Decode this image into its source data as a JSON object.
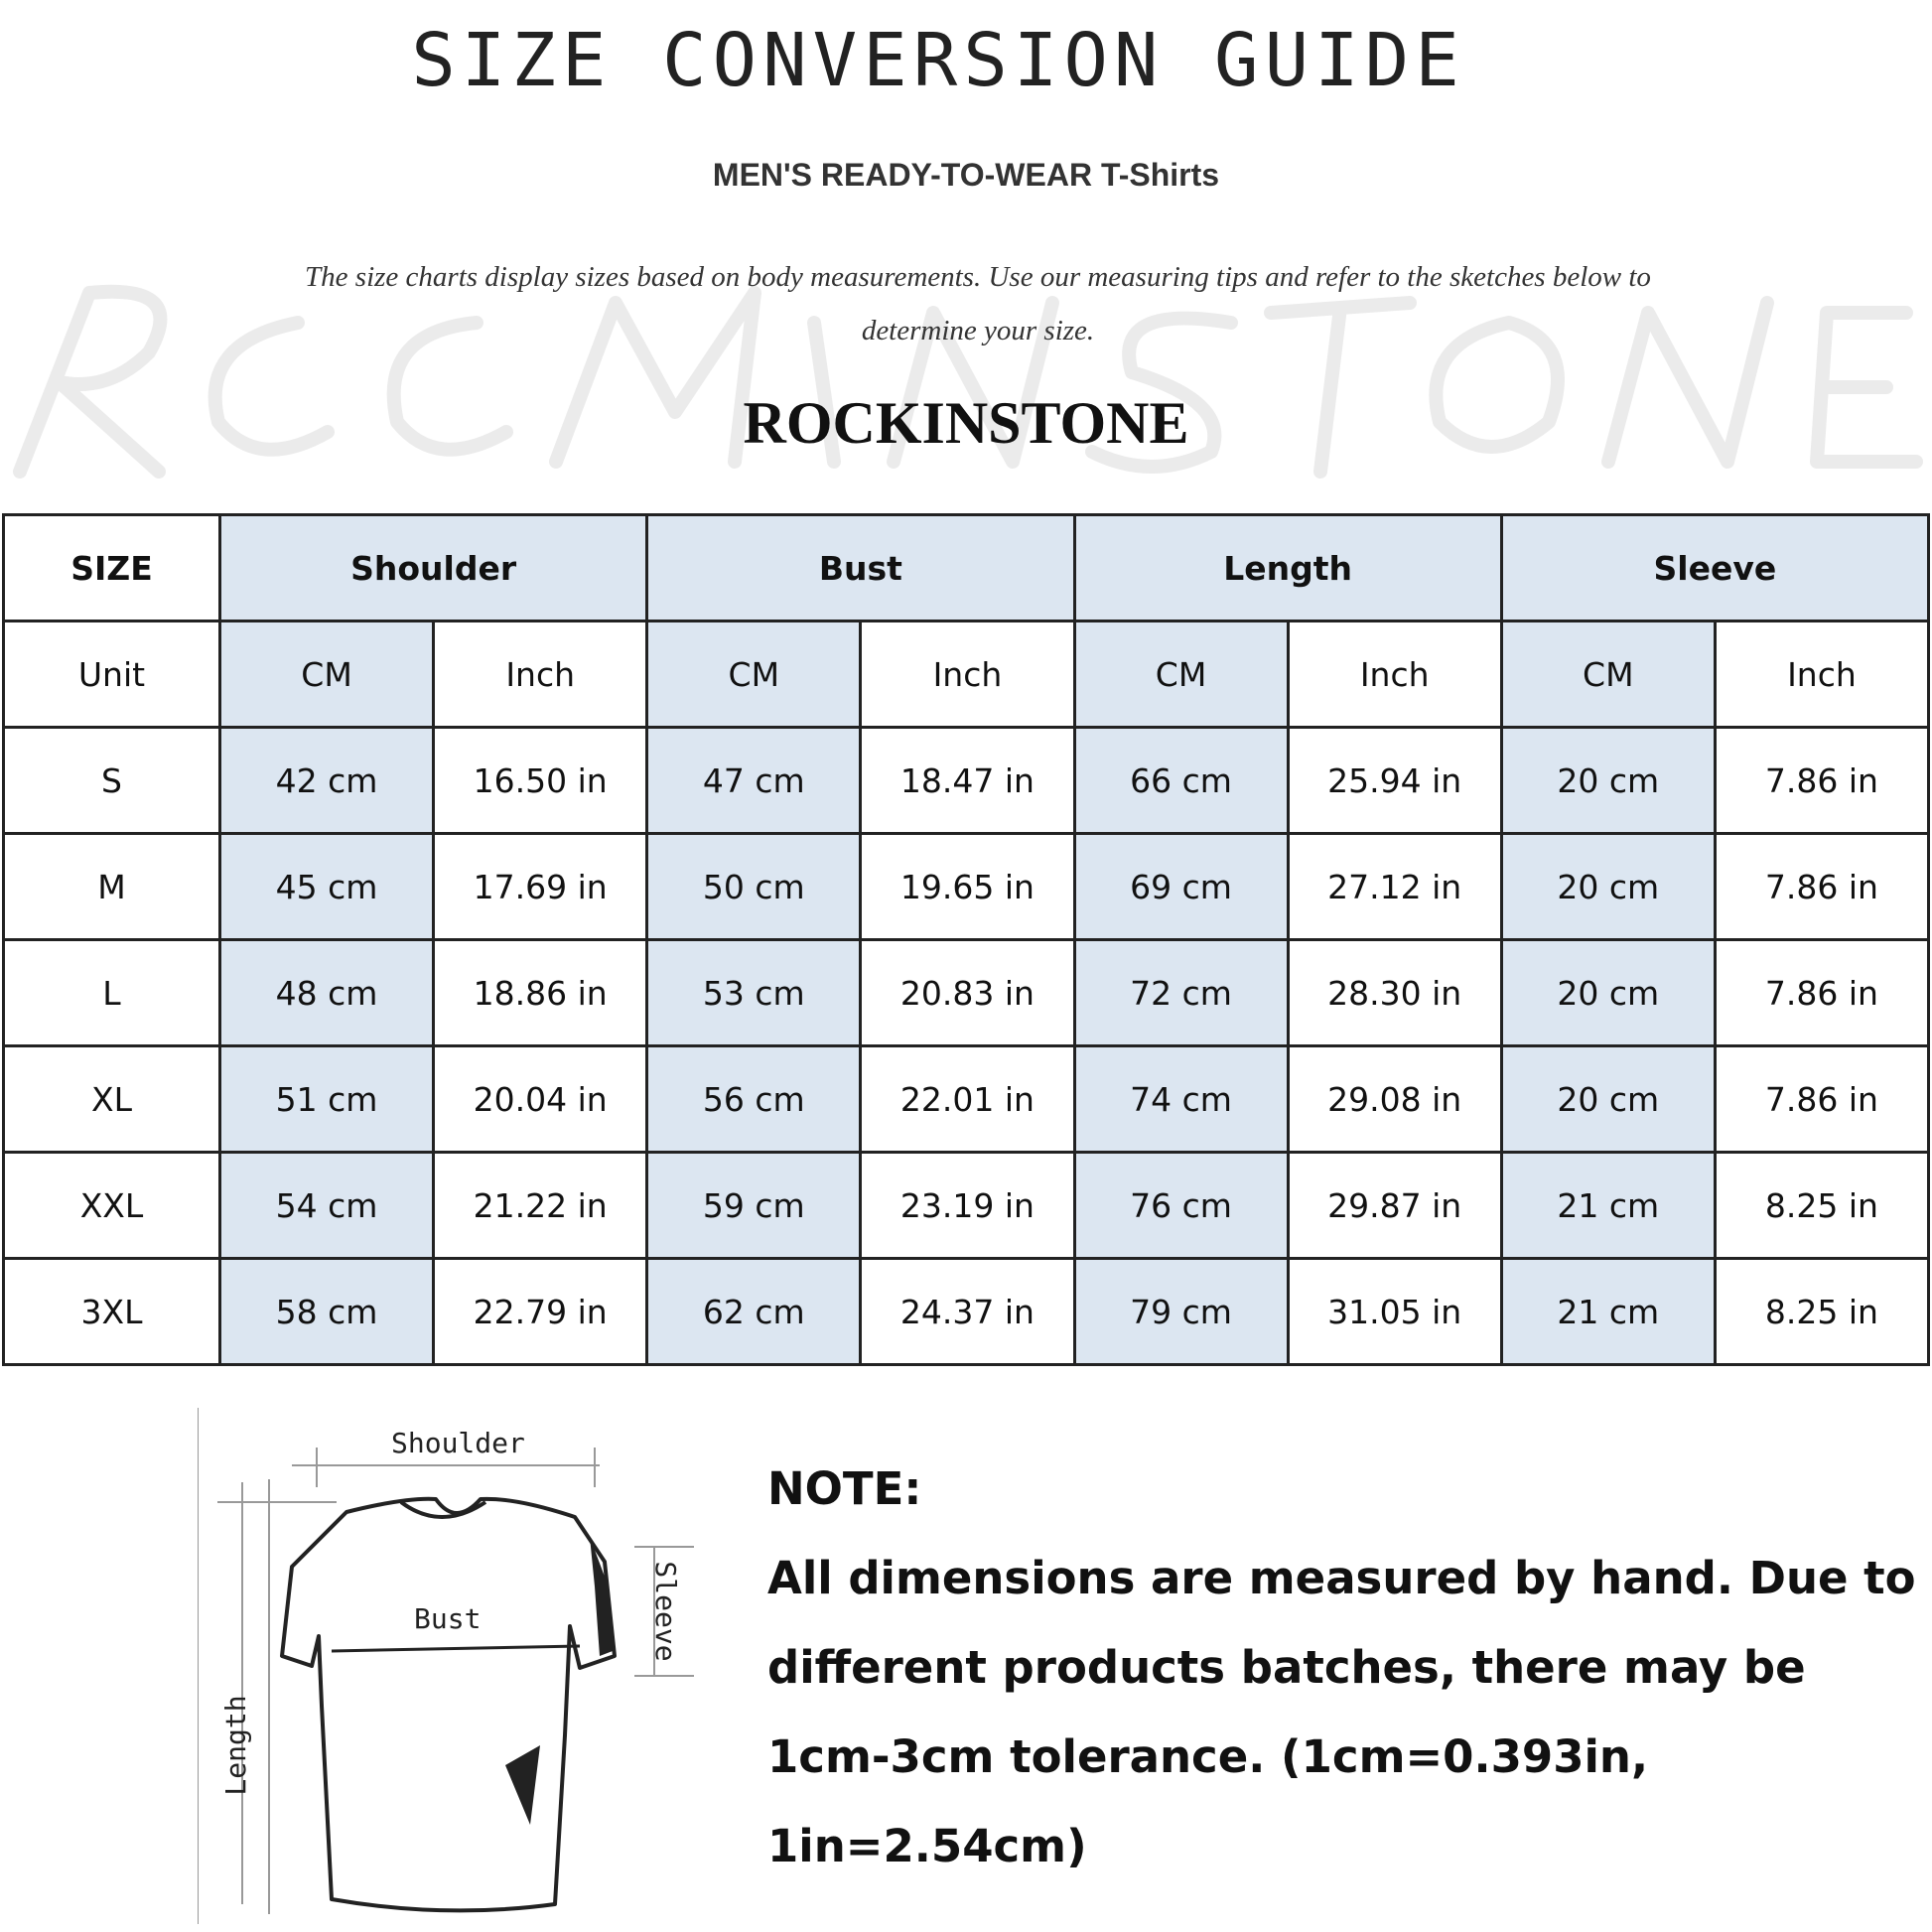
{
  "header": {
    "title": "SIZE CONVERSION GUIDE",
    "subtitle": "MEN'S READY-TO-WEAR T-Shirts",
    "description": "The size charts display sizes based on body measurements. Use our measuring tips and refer to the sketches below to determine your size.",
    "watermark": "ROCKINSTONE",
    "brand": "ROCKINSTONE"
  },
  "table": {
    "size_label": "SIZE",
    "groups": [
      "Shoulder",
      "Bust",
      "Length",
      "Sleeve"
    ],
    "unit_label": "Unit",
    "units": [
      "CM",
      "Inch",
      "CM",
      "Inch",
      "CM",
      "Inch",
      "CM",
      "Inch"
    ],
    "rows": [
      {
        "size": "S",
        "cells": [
          "42 cm",
          "16.50 in",
          "47 cm",
          "18.47  in",
          "66 cm",
          "25.94  in",
          "20 cm",
          "7.86  in"
        ]
      },
      {
        "size": "M",
        "cells": [
          "45 cm",
          "17.69  in",
          "50 cm",
          "19.65  in",
          "69 cm",
          "27.12  in",
          "20 cm",
          "7.86  in"
        ]
      },
      {
        "size": "L",
        "cells": [
          "48 cm",
          "18.86  in",
          "53 cm",
          "20.83  in",
          "72 cm",
          "28.30  in",
          "20 cm",
          "7.86  in"
        ]
      },
      {
        "size": "XL",
        "cells": [
          "51 cm",
          "20.04  in",
          "56 cm",
          "22.01  in",
          "74 cm",
          "29.08  in",
          "20 cm",
          "7.86  in"
        ]
      },
      {
        "size": "XXL",
        "cells": [
          "54 cm",
          "21.22  in",
          "59 cm",
          "23.19  in",
          "76 cm",
          "29.87  in",
          "21 cm",
          "8.25  in"
        ]
      },
      {
        "size": "3XL",
        "cells": [
          "58 cm",
          "22.79  in",
          "62 cm",
          "24.37  in",
          "79 cm",
          "31.05  in",
          "21 cm",
          "8.25  in"
        ]
      }
    ],
    "highlight_color": "#dce6f1"
  },
  "diagram": {
    "shoulder": "Shoulder",
    "bust": "Bust",
    "length": "Length",
    "sleeve": "Sleeve"
  },
  "note": {
    "heading": "NOTE:",
    "text": "All dimensions are measured by hand. Due to different products batches, there may be 1cm-3cm tolerance. (1cm=0.393in, 1in=2.54cm)"
  }
}
